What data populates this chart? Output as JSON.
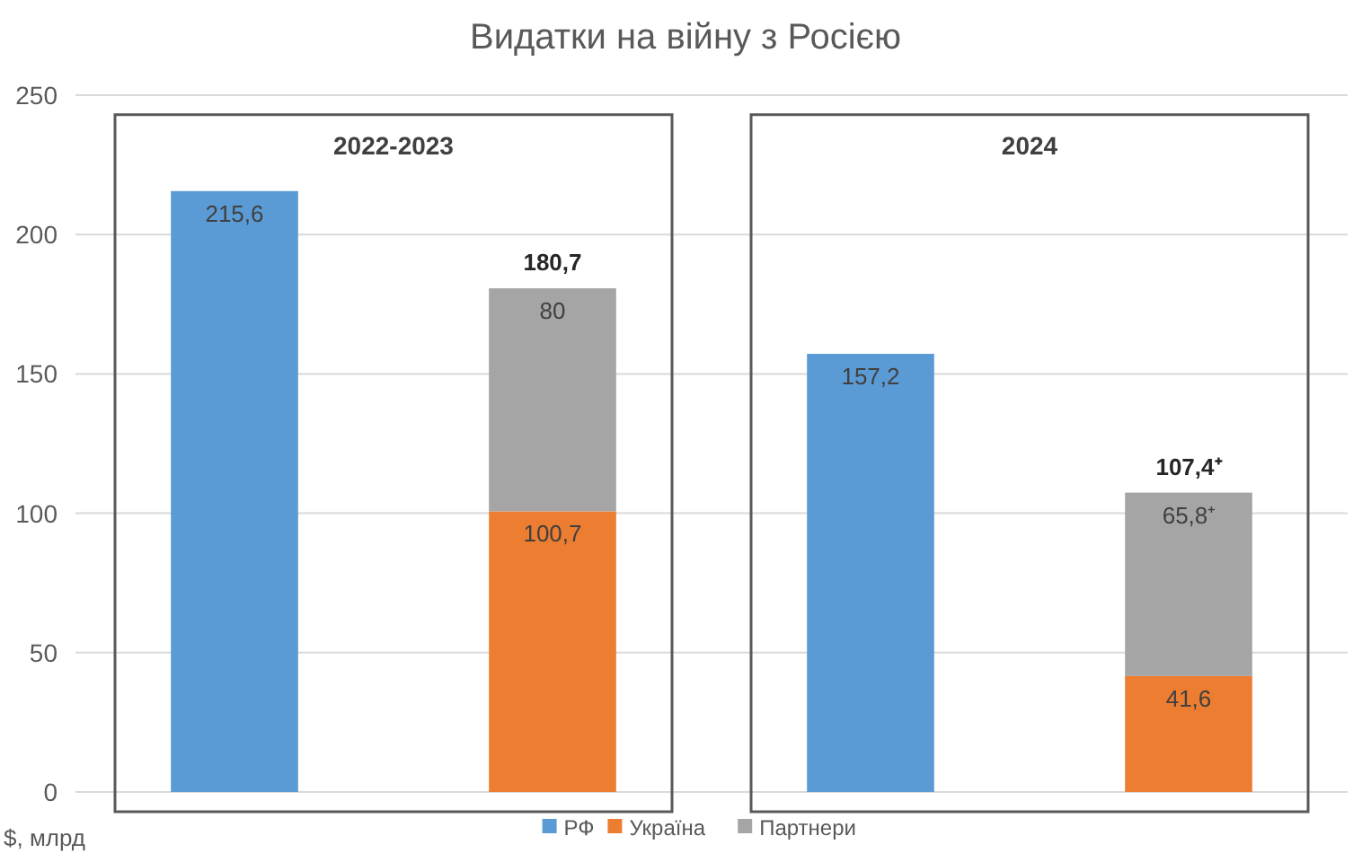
{
  "chart_data": {
    "type": "bar",
    "title": "Видатки на війну з Росією",
    "categories": [
      null,
      null,
      null,
      null
    ],
    "stacked": true,
    "series": [
      {
        "name": "РФ",
        "color": "#5b9bd5",
        "values": [
          215.6,
          null,
          157.2,
          null
        ],
        "value_labels": [
          "215,6",
          null,
          "157,2",
          null
        ]
      },
      {
        "name": "Україна",
        "color": "#ed7d31",
        "values": [
          null,
          100.7,
          null,
          41.6
        ],
        "value_labels": [
          null,
          "100,7",
          null,
          "41,6"
        ]
      },
      {
        "name": "Партнери",
        "color": "#a5a5a5",
        "values": [
          null,
          80,
          null,
          65.8
        ],
        "value_labels": [
          null,
          "80",
          null,
          "65,8⁺"
        ]
      }
    ],
    "totals": [
      null,
      "180,7",
      null,
      "107,4⁺"
    ],
    "ylim": [
      0,
      250
    ],
    "yticks": [
      0,
      50,
      100,
      150,
      200,
      250
    ],
    "grid": "y",
    "legend": "bottom",
    "annotations": [
      "2022-2023",
      "2024",
      "$, млрд"
    ]
  }
}
